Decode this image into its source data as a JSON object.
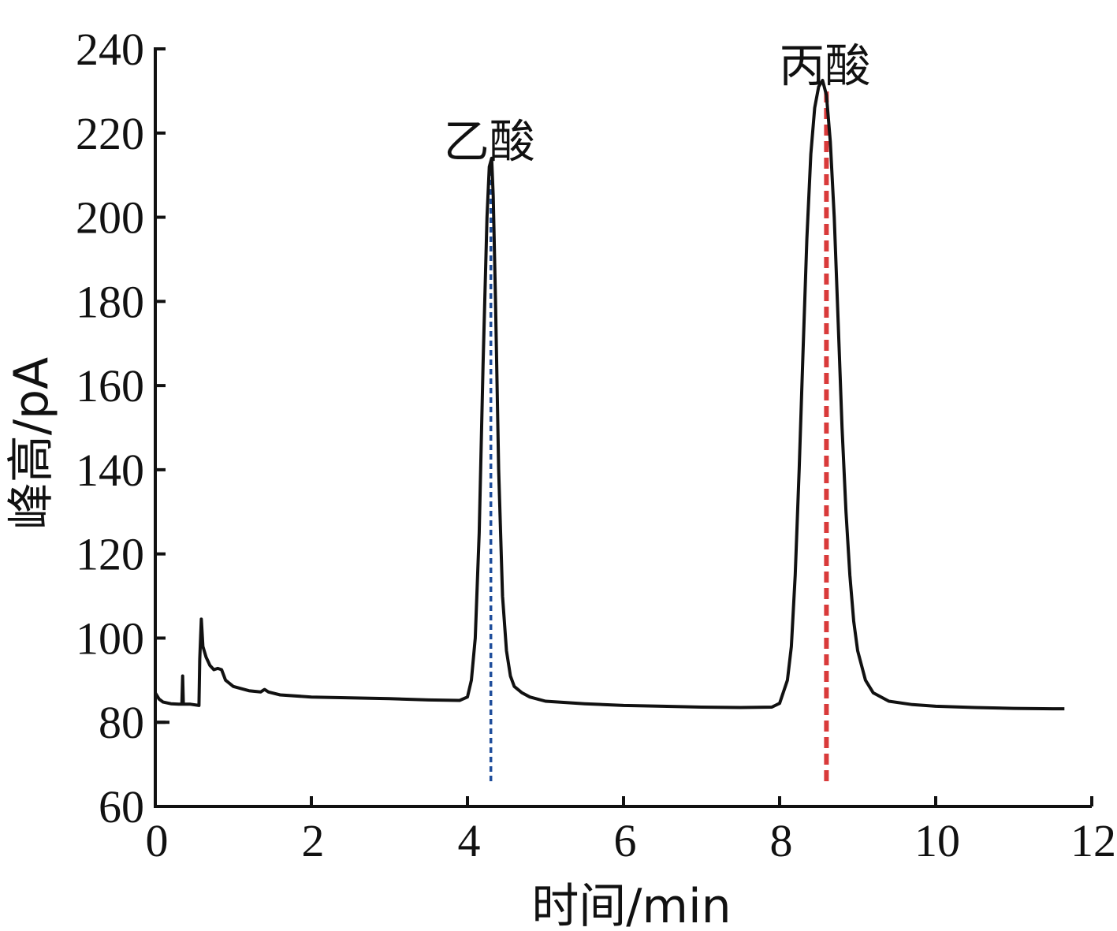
{
  "chart_data": {
    "type": "line",
    "xlabel": "时间/min",
    "ylabel": "峰高/pA",
    "xlim": [
      0,
      12
    ],
    "ylim": [
      60,
      240
    ],
    "x_ticks": [
      0,
      2,
      4,
      6,
      8,
      10,
      12
    ],
    "y_ticks": [
      60,
      80,
      100,
      120,
      140,
      160,
      180,
      200,
      220,
      240
    ],
    "grid": false,
    "series": [
      {
        "color": "#111111",
        "points": [
          [
            0.0,
            87.0
          ],
          [
            0.05,
            85.5
          ],
          [
            0.1,
            84.8
          ],
          [
            0.2,
            84.4
          ],
          [
            0.3,
            84.3
          ],
          [
            0.34,
            84.3
          ],
          [
            0.35,
            91.0
          ],
          [
            0.36,
            84.3
          ],
          [
            0.45,
            84.3
          ],
          [
            0.56,
            84.0
          ],
          [
            0.57,
            95.0
          ],
          [
            0.59,
            104.5
          ],
          [
            0.61,
            98.0
          ],
          [
            0.65,
            95.5
          ],
          [
            0.7,
            93.5
          ],
          [
            0.75,
            92.5
          ],
          [
            0.8,
            92.8
          ],
          [
            0.85,
            92.5
          ],
          [
            0.9,
            90.0
          ],
          [
            1.0,
            88.5
          ],
          [
            1.2,
            87.5
          ],
          [
            1.35,
            87.2
          ],
          [
            1.4,
            87.8
          ],
          [
            1.45,
            87.2
          ],
          [
            1.6,
            86.5
          ],
          [
            2.0,
            86.0
          ],
          [
            2.5,
            85.8
          ],
          [
            3.0,
            85.6
          ],
          [
            3.5,
            85.3
          ],
          [
            3.9,
            85.2
          ],
          [
            4.0,
            86.0
          ],
          [
            4.05,
            90.0
          ],
          [
            4.1,
            100.0
          ],
          [
            4.15,
            125.0
          ],
          [
            4.2,
            165.0
          ],
          [
            4.25,
            200.0
          ],
          [
            4.28,
            212.0
          ],
          [
            4.31,
            214.0
          ],
          [
            4.33,
            205.0
          ],
          [
            4.36,
            180.0
          ],
          [
            4.4,
            140.0
          ],
          [
            4.45,
            110.0
          ],
          [
            4.5,
            97.0
          ],
          [
            4.55,
            91.0
          ],
          [
            4.6,
            88.5
          ],
          [
            4.7,
            87.0
          ],
          [
            4.8,
            86.0
          ],
          [
            5.0,
            85.0
          ],
          [
            5.5,
            84.4
          ],
          [
            6.0,
            84.0
          ],
          [
            6.5,
            83.8
          ],
          [
            7.0,
            83.6
          ],
          [
            7.5,
            83.5
          ],
          [
            7.9,
            83.6
          ],
          [
            8.0,
            84.5
          ],
          [
            8.1,
            90.0
          ],
          [
            8.15,
            98.0
          ],
          [
            8.2,
            115.0
          ],
          [
            8.25,
            140.0
          ],
          [
            8.3,
            168.0
          ],
          [
            8.35,
            195.0
          ],
          [
            8.4,
            215.0
          ],
          [
            8.45,
            226.0
          ],
          [
            8.5,
            231.0
          ],
          [
            8.55,
            232.5
          ],
          [
            8.6,
            229.0
          ],
          [
            8.65,
            218.0
          ],
          [
            8.7,
            200.0
          ],
          [
            8.75,
            175.0
          ],
          [
            8.8,
            150.0
          ],
          [
            8.85,
            130.0
          ],
          [
            8.9,
            115.0
          ],
          [
            8.95,
            104.0
          ],
          [
            9.0,
            97.0
          ],
          [
            9.1,
            90.0
          ],
          [
            9.2,
            87.0
          ],
          [
            9.4,
            85.0
          ],
          [
            9.7,
            84.2
          ],
          [
            10.0,
            83.8
          ],
          [
            10.5,
            83.5
          ],
          [
            11.0,
            83.3
          ],
          [
            11.5,
            83.2
          ],
          [
            11.65,
            83.2
          ]
        ]
      }
    ],
    "reference_lines": [
      {
        "x": 4.3,
        "y_from": 66,
        "y_to": 213,
        "color": "#1f4e9c",
        "style": "dotted"
      },
      {
        "x": 8.6,
        "y_from": 66,
        "y_to": 231,
        "color": "#d93a3a",
        "style": "dashed"
      }
    ],
    "annotations": [
      {
        "text": "乙酸",
        "x": 4.3,
        "y": 218
      },
      {
        "text": "丙酸",
        "x": 8.6,
        "y": 236
      }
    ]
  }
}
